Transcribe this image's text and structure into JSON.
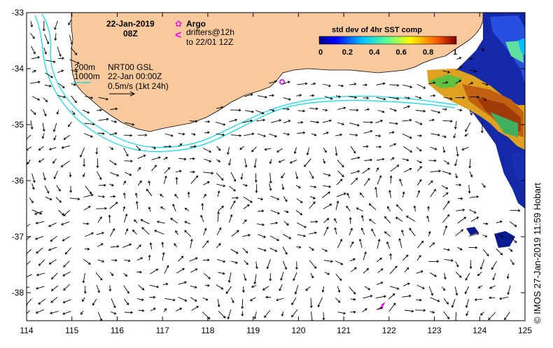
{
  "header": {
    "date": "22-Jan-2019",
    "time": "08Z",
    "argo_label": "Argo",
    "drifters_label": "drifters@12h",
    "drifters_range": "to 22/01 12Z"
  },
  "legend": {
    "isobath_200": "200m",
    "isobath_1000": "1000m",
    "product": "NRT00 GSL",
    "valid_time": "22-Jan 00:00Z",
    "scale_label": "0.5m/s (1kt 24h)"
  },
  "colorbar": {
    "title": "std dev of 4hr SST comp",
    "ticks": [
      "0",
      "0.2",
      "0.4",
      "0.6",
      "0.8",
      "1"
    ]
  },
  "axes": {
    "x_ticks": [
      "114",
      "115",
      "116",
      "117",
      "118",
      "119",
      "120",
      "121",
      "122",
      "123",
      "124",
      "125"
    ],
    "y_ticks": [
      "-33",
      "-34",
      "-35",
      "-36",
      "-37",
      "-38"
    ]
  },
  "credit": "© IMOS 27-Jan-2019 11:59 Hobart",
  "colors": {
    "land": "#f8c99c",
    "isobath": "#00e0e8",
    "argo": "#e020e0",
    "drifter": "#ff00ff"
  }
}
